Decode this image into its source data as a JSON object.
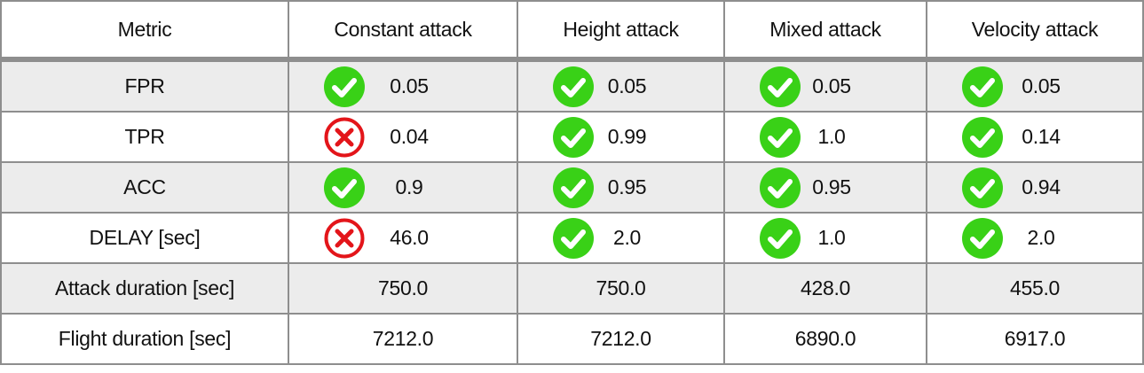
{
  "colors": {
    "pass": "#39d117",
    "fail": "#e3151a",
    "border": "#8e8e8e",
    "stripe": "#ececec"
  },
  "table": {
    "headers": [
      "Metric",
      "Constant attack",
      "Height attack",
      "Mixed attack",
      "Velocity attack"
    ],
    "rows": [
      {
        "label": "FPR",
        "cells": [
          {
            "value": "0.05",
            "status": "pass",
            "icon": "check-circle-icon"
          },
          {
            "value": "0.05",
            "status": "pass",
            "icon": "check-circle-icon"
          },
          {
            "value": "0.05",
            "status": "pass",
            "icon": "check-circle-icon"
          },
          {
            "value": "0.05",
            "status": "pass",
            "icon": "check-circle-icon"
          }
        ]
      },
      {
        "label": "TPR",
        "cells": [
          {
            "value": "0.04",
            "status": "fail",
            "icon": "x-circle-icon"
          },
          {
            "value": "0.99",
            "status": "pass",
            "icon": "check-circle-icon"
          },
          {
            "value": "1.0",
            "status": "pass",
            "icon": "check-circle-icon"
          },
          {
            "value": "0.14",
            "status": "pass",
            "icon": "check-circle-icon"
          }
        ]
      },
      {
        "label": "ACC",
        "cells": [
          {
            "value": "0.9",
            "status": "pass",
            "icon": "check-circle-icon"
          },
          {
            "value": "0.95",
            "status": "pass",
            "icon": "check-circle-icon"
          },
          {
            "value": "0.95",
            "status": "pass",
            "icon": "check-circle-icon"
          },
          {
            "value": "0.94",
            "status": "pass",
            "icon": "check-circle-icon"
          }
        ]
      },
      {
        "label": "DELAY [sec]",
        "cells": [
          {
            "value": "46.0",
            "status": "fail",
            "icon": "x-circle-icon"
          },
          {
            "value": "2.0",
            "status": "pass",
            "icon": "check-circle-icon"
          },
          {
            "value": "1.0",
            "status": "pass",
            "icon": "check-circle-icon"
          },
          {
            "value": "2.0",
            "status": "pass",
            "icon": "check-circle-icon"
          }
        ]
      },
      {
        "label": "Attack duration [sec]",
        "cells": [
          {
            "value": "750.0"
          },
          {
            "value": "750.0"
          },
          {
            "value": "428.0"
          },
          {
            "value": "455.0"
          }
        ]
      },
      {
        "label": "Flight duration [sec]",
        "cells": [
          {
            "value": "7212.0"
          },
          {
            "value": "7212.0"
          },
          {
            "value": "6890.0"
          },
          {
            "value": "6917.0"
          }
        ]
      }
    ]
  }
}
